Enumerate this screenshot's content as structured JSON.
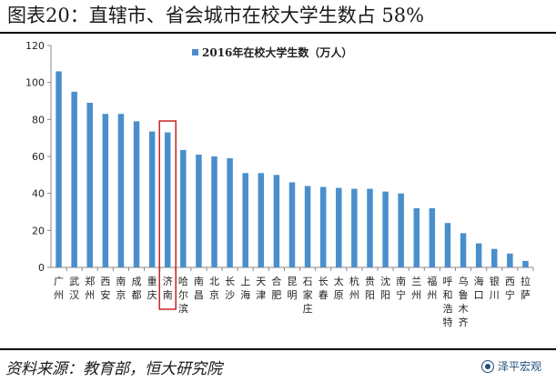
{
  "title": "图表20：直辖市、省会城市在校大学生数占 58%",
  "source": "资料来源：教育部，恒大研究院",
  "watermark": "泽平宏观",
  "colors": {
    "bar": "#4a8fcc",
    "highlight": "#cc2222",
    "axis": "#888888"
  },
  "chart_data": {
    "type": "bar",
    "ylim": [
      0,
      120
    ],
    "yticks": [
      0,
      20,
      40,
      60,
      80,
      100,
      120
    ],
    "grid": false,
    "legend": "top-center",
    "series": [
      {
        "name": "2016年在校大学生数（万人）",
        "values": [
          106,
          95,
          89,
          83,
          83,
          79,
          73.5,
          73,
          63.5,
          61,
          60,
          59,
          51,
          51,
          50,
          46,
          44,
          43.5,
          43,
          42.5,
          42.5,
          41,
          40,
          32,
          32,
          24,
          18.5,
          13,
          10,
          7.5,
          3.5
        ]
      }
    ],
    "categories": [
      "广州",
      "武汉",
      "郑州",
      "西安",
      "南京",
      "成都",
      "重庆",
      "济南",
      "哈尔滨",
      "南昌",
      "北京",
      "长沙",
      "上海",
      "天津",
      "合肥",
      "昆明",
      "石家庄",
      "长春",
      "太原",
      "杭州",
      "贵阳",
      "沈阳",
      "南宁",
      "兰州",
      "福州",
      "呼和浩特",
      "乌鲁木齐",
      "海口",
      "银川",
      "西宁",
      "拉萨"
    ],
    "highlight_category": "济南"
  }
}
